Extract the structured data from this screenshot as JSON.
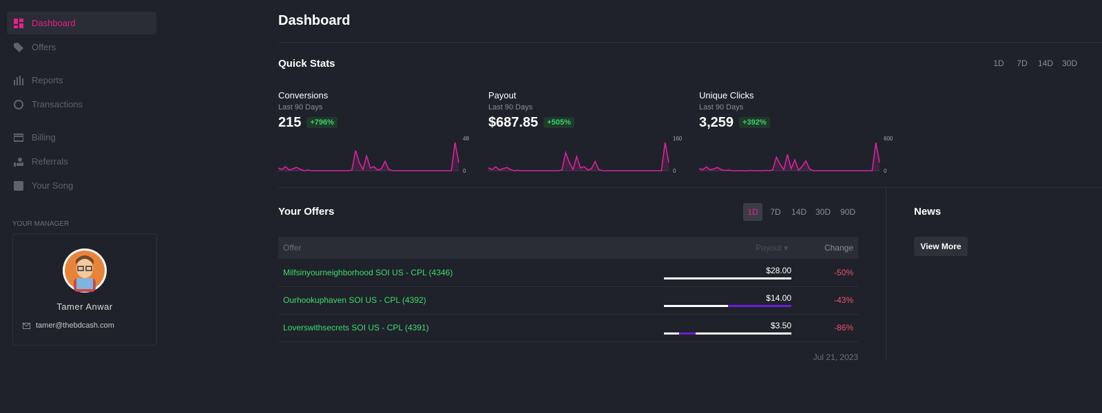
{
  "nav": [
    {
      "label": "Dashboard",
      "active": true
    },
    {
      "label": "Offers",
      "active": false
    },
    {
      "label": "Reports",
      "active": false
    },
    {
      "label": "Transactions",
      "active": false
    },
    {
      "label": "Billing",
      "active": false
    },
    {
      "label": "Referrals",
      "active": false
    },
    {
      "label": "Your Song",
      "active": false
    }
  ],
  "manager": {
    "heading": "YOUR MANAGER",
    "name": "Tamer Anwar",
    "email": "tamer@thebdcash.com"
  },
  "header": {
    "title": "Dashboard"
  },
  "quick_stats": {
    "title": "Quick Stats",
    "periods": [
      "1D",
      "7D",
      "14D",
      "30D"
    ],
    "cards": [
      {
        "title": "Conversions",
        "subtitle": "Last 90 Days",
        "value": "215",
        "change": "+796%",
        "chart": {
          "type": "line",
          "color": "#d6249f",
          "ylim": [
            0,
            48
          ],
          "yticks": [
            0,
            48
          ],
          "values": [
            4,
            2,
            6,
            1,
            3,
            5,
            2,
            0,
            1,
            0,
            0,
            0,
            0,
            0,
            0,
            0,
            0,
            0,
            0,
            0,
            1,
            30,
            12,
            2,
            22,
            4,
            6,
            1,
            3,
            14,
            2,
            0,
            0,
            0,
            0,
            0,
            0,
            0,
            0,
            0,
            0,
            0,
            0,
            0,
            0,
            0,
            0,
            0,
            42,
            12
          ]
        }
      },
      {
        "title": "Payout",
        "subtitle": "Last 90 Days",
        "value": "$687.85",
        "change": "+505%",
        "chart": {
          "type": "line",
          "color": "#d6249f",
          "ylim": [
            0,
            160
          ],
          "yticks": [
            0,
            160
          ],
          "values": [
            14,
            6,
            20,
            4,
            10,
            16,
            6,
            0,
            2,
            0,
            0,
            0,
            0,
            0,
            0,
            0,
            0,
            0,
            0,
            0,
            4,
            90,
            40,
            6,
            70,
            14,
            20,
            4,
            10,
            46,
            6,
            0,
            0,
            0,
            0,
            0,
            0,
            0,
            0,
            0,
            0,
            0,
            0,
            0,
            0,
            0,
            0,
            0,
            140,
            40
          ]
        }
      },
      {
        "title": "Unique Clicks",
        "subtitle": "Last 90 Days",
        "value": "3,259",
        "change": "+392%",
        "chart": {
          "type": "line",
          "color": "#d6249f",
          "ylim": [
            0,
            600
          ],
          "yticks": [
            0,
            600
          ],
          "values": [
            40,
            20,
            70,
            15,
            35,
            60,
            20,
            5,
            10,
            0,
            0,
            0,
            0,
            0,
            5,
            0,
            0,
            0,
            5,
            0,
            15,
            250,
            120,
            20,
            300,
            40,
            200,
            10,
            80,
            180,
            30,
            0,
            0,
            0,
            0,
            0,
            0,
            0,
            0,
            0,
            0,
            0,
            0,
            0,
            0,
            0,
            0,
            0,
            520,
            150
          ]
        }
      }
    ]
  },
  "offers": {
    "title": "Your Offers",
    "periods": [
      "1D",
      "7D",
      "14D",
      "30D",
      "90D"
    ],
    "active_period": "1D",
    "columns": [
      "Offer",
      "Payout ▾",
      "Change"
    ],
    "rows": [
      [
        "Milfsinyourneighborhood SOI US - CPL (4346)",
        "$28.00",
        "-50%"
      ],
      [
        "Ourhookuphaven SOI US - CPL (4392)",
        "$14.00",
        "-43%"
      ],
      [
        "Loverswithsecrets SOI US - CPL (4391)",
        "$3.50",
        "-86%"
      ]
    ],
    "date": "Jul 21, 2023"
  },
  "news": {
    "title": "News",
    "button": "View More"
  }
}
